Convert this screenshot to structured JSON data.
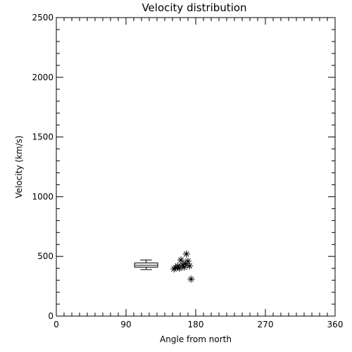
{
  "chart_data": {
    "type": "scatter",
    "title": "Velocity distribution",
    "xlabel": "Angle from north",
    "ylabel": "Velocity (km/s)",
    "xlim": [
      0,
      360
    ],
    "ylim": [
      0,
      2500
    ],
    "x_ticks": [
      0,
      90,
      180,
      270,
      360
    ],
    "y_ticks": [
      0,
      500,
      1000,
      1500,
      2000,
      2500
    ],
    "grid": false,
    "legend": "none",
    "box": {
      "x_range": [
        101,
        131
      ],
      "whisker_low": 390,
      "q1": 410,
      "median": 425,
      "q3": 445,
      "whisker_high": 470
    },
    "points": [
      {
        "x": 152,
        "y": 395
      },
      {
        "x": 154,
        "y": 405
      },
      {
        "x": 157,
        "y": 420
      },
      {
        "x": 159,
        "y": 400
      },
      {
        "x": 161,
        "y": 470
      },
      {
        "x": 163,
        "y": 430
      },
      {
        "x": 165,
        "y": 410
      },
      {
        "x": 167,
        "y": 440
      },
      {
        "x": 168,
        "y": 520
      },
      {
        "x": 170,
        "y": 460
      },
      {
        "x": 172,
        "y": 420
      },
      {
        "x": 174,
        "y": 310
      }
    ],
    "marker": "asterisk",
    "colors": {
      "ink": "#000000",
      "background": "#ffffff"
    }
  }
}
